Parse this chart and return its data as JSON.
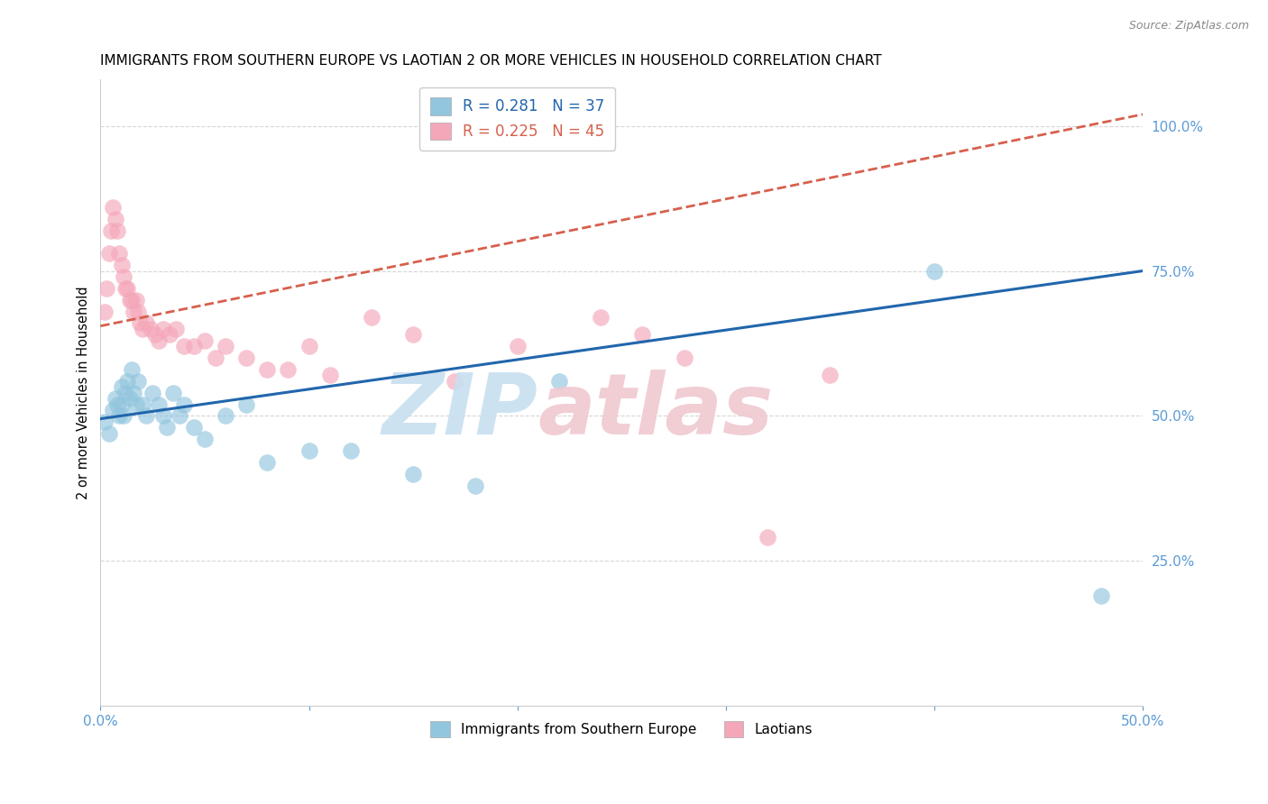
{
  "title": "IMMIGRANTS FROM SOUTHERN EUROPE VS LAOTIAN 2 OR MORE VEHICLES IN HOUSEHOLD CORRELATION CHART",
  "source": "Source: ZipAtlas.com",
  "ylabel": "2 or more Vehicles in Household",
  "ytick_vals": [
    0.0,
    0.25,
    0.5,
    0.75,
    1.0
  ],
  "ytick_labels": [
    "",
    "25.0%",
    "50.0%",
    "75.0%",
    "100.0%"
  ],
  "xlim": [
    0.0,
    0.5
  ],
  "ylim": [
    0.0,
    1.08
  ],
  "legend_blue_label": "R = 0.281   N = 37",
  "legend_pink_label": "R = 0.225   N = 45",
  "legend_bottom_blue": "Immigrants from Southern Europe",
  "legend_bottom_pink": "Laotians",
  "blue_color": "#92c5de",
  "pink_color": "#f4a7b9",
  "blue_line_color": "#2166ac",
  "pink_line_color": "#d6604d",
  "watermark_zip_color": "#c8dff0",
  "watermark_atlas_color": "#f0c8d0",
  "title_fontsize": 11,
  "axis_tick_color": "#5b9bd5",
  "grid_color": "#cccccc",
  "blue_scatter_x": [
    0.002,
    0.004,
    0.006,
    0.007,
    0.008,
    0.009,
    0.01,
    0.01,
    0.011,
    0.012,
    0.013,
    0.014,
    0.015,
    0.016,
    0.017,
    0.018,
    0.02,
    0.022,
    0.025,
    0.028,
    0.03,
    0.032,
    0.035,
    0.038,
    0.04,
    0.045,
    0.05,
    0.06,
    0.07,
    0.08,
    0.1,
    0.12,
    0.15,
    0.18,
    0.22,
    0.4,
    0.48
  ],
  "blue_scatter_y": [
    0.49,
    0.47,
    0.51,
    0.53,
    0.52,
    0.5,
    0.55,
    0.52,
    0.5,
    0.54,
    0.56,
    0.53,
    0.58,
    0.54,
    0.52,
    0.56,
    0.52,
    0.5,
    0.54,
    0.52,
    0.5,
    0.48,
    0.54,
    0.5,
    0.52,
    0.48,
    0.46,
    0.5,
    0.52,
    0.42,
    0.44,
    0.44,
    0.4,
    0.38,
    0.56,
    0.75,
    0.19
  ],
  "pink_scatter_x": [
    0.002,
    0.003,
    0.004,
    0.005,
    0.006,
    0.007,
    0.008,
    0.009,
    0.01,
    0.011,
    0.012,
    0.013,
    0.014,
    0.015,
    0.016,
    0.017,
    0.018,
    0.019,
    0.02,
    0.022,
    0.024,
    0.026,
    0.028,
    0.03,
    0.033,
    0.036,
    0.04,
    0.045,
    0.05,
    0.055,
    0.06,
    0.07,
    0.08,
    0.09,
    0.1,
    0.11,
    0.13,
    0.15,
    0.17,
    0.2,
    0.24,
    0.26,
    0.28,
    0.32,
    0.35
  ],
  "pink_scatter_y": [
    0.68,
    0.72,
    0.78,
    0.82,
    0.86,
    0.84,
    0.82,
    0.78,
    0.76,
    0.74,
    0.72,
    0.72,
    0.7,
    0.7,
    0.68,
    0.7,
    0.68,
    0.66,
    0.65,
    0.66,
    0.65,
    0.64,
    0.63,
    0.65,
    0.64,
    0.65,
    0.62,
    0.62,
    0.63,
    0.6,
    0.62,
    0.6,
    0.58,
    0.58,
    0.62,
    0.57,
    0.67,
    0.64,
    0.56,
    0.62,
    0.67,
    0.64,
    0.6,
    0.29,
    0.57
  ],
  "blue_line_x0": 0.0,
  "blue_line_y0": 0.495,
  "blue_line_x1": 0.5,
  "blue_line_y1": 0.75,
  "pink_line_x0": 0.0,
  "pink_line_y0": 0.655,
  "pink_line_x1": 0.5,
  "pink_line_y1": 1.02
}
